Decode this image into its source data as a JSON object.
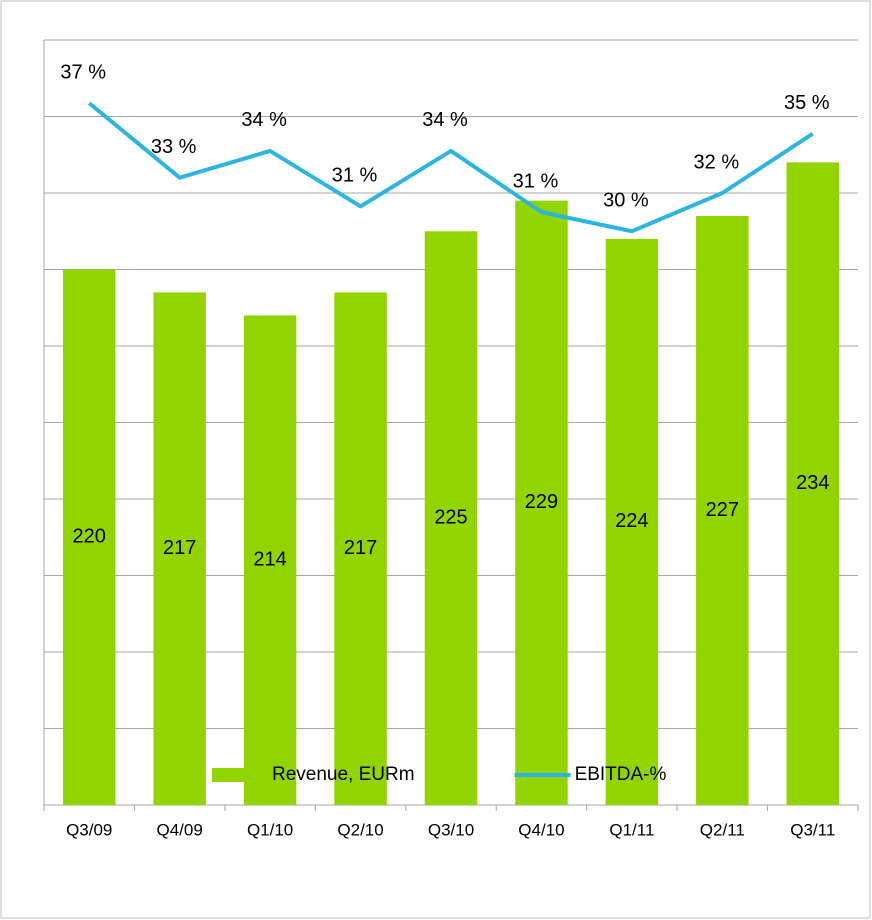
{
  "chart_data": {
    "type": "bar_line",
    "categories": [
      "Q3/09",
      "Q4/09",
      "Q1/10",
      "Q2/10",
      "Q3/10",
      "Q4/10",
      "Q1/11",
      "Q2/11",
      "Q3/11"
    ],
    "series": [
      {
        "name": "Revenue, EURm",
        "type": "bar",
        "color": "#92d400",
        "values": [
          220,
          217,
          214,
          217,
          225,
          229,
          224,
          227,
          234
        ]
      },
      {
        "name": "EBITDA-%",
        "type": "line",
        "axis": "y2",
        "color": "#2cb5e3",
        "values": [
          36.7,
          32.8,
          34.2,
          31.3,
          34.2,
          31.0,
          30.0,
          32.0,
          35.1
        ],
        "value_labels": [
          "37 %",
          "33 %",
          "34 %",
          "31 %",
          "34 %",
          "31 %",
          "30 %",
          "32 %",
          "35 %"
        ]
      }
    ],
    "ylim": [
      150,
      250
    ],
    "yticks": [
      150,
      160,
      170,
      180,
      190,
      200,
      210,
      220,
      230,
      240,
      250
    ],
    "y2lim": [
      0,
      40
    ],
    "grid": true,
    "legend": "bottom"
  }
}
